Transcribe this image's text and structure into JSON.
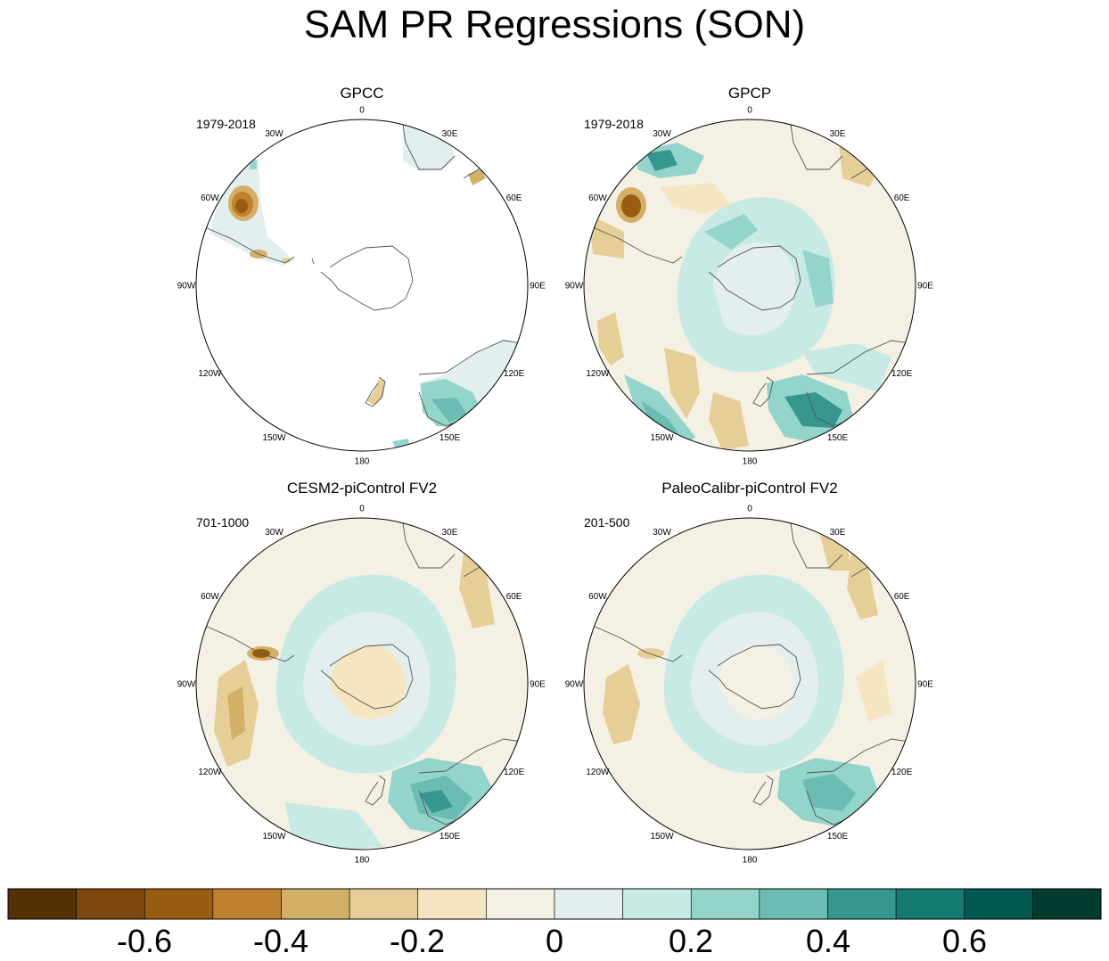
{
  "title": "SAM PR Regressions (SON)",
  "longitude_labels": [
    "0",
    "30E",
    "60E",
    "90E",
    "120E",
    "150E",
    "180",
    "150W",
    "120W",
    "90W",
    "60W",
    "30W"
  ],
  "panels": [
    {
      "title": "GPCC",
      "period": "1979-2018"
    },
    {
      "title": "GPCP",
      "period": "1979-2018"
    },
    {
      "title": "CESM2-piControl FV2",
      "period": "701-1000"
    },
    {
      "title": "PaleoCalibr-piControl FV2",
      "period": "201-500"
    }
  ],
  "colorbar": {
    "colors": [
      "#543005",
      "#7f470e",
      "#995d12",
      "#bf812d",
      "#d4af66",
      "#e6cf97",
      "#f5e6c1",
      "#f4f0e4",
      "#e2efee",
      "#c7eae5",
      "#93d4cb",
      "#6bbcb2",
      "#35978f",
      "#137a70",
      "#00584f",
      "#003c30"
    ],
    "tick_labels": [
      "-0.6",
      "-0.4",
      "-0.2",
      "0",
      "0.2",
      "0.4",
      "0.6"
    ]
  },
  "chart_data": [
    {
      "type": "heatmap",
      "projection": "south-polar-stereographic",
      "title": "GPCC",
      "subtitle": "1979-2018",
      "variable": "precipitation regression on SAM",
      "levels": [
        -0.7,
        -0.6,
        -0.5,
        -0.4,
        -0.3,
        -0.2,
        -0.1,
        0,
        0.1,
        0.2,
        0.3,
        0.4,
        0.5,
        0.6,
        0.7
      ],
      "features": [
        {
          "region": "southern South America (Argentina)",
          "value": -0.6
        },
        {
          "region": "Patagonia south tip",
          "value": -0.3
        },
        {
          "region": "southeastern Australia",
          "value": 0.4
        },
        {
          "region": "Tasmania",
          "value": 0.3
        },
        {
          "region": "New Zealand",
          "value": -0.2
        },
        {
          "region": "southern Africa",
          "value": 0.1
        }
      ]
    },
    {
      "type": "heatmap",
      "projection": "south-polar-stereographic",
      "title": "GPCP",
      "subtitle": "1979-2018",
      "variable": "precipitation regression on SAM",
      "features": [
        {
          "region": "South Atlantic near 30W",
          "value": 0.6
        },
        {
          "region": "southern South America",
          "value": -0.6
        },
        {
          "region": "Southern Ocean ring ~60S",
          "value": 0.2
        },
        {
          "region": "southeastern Australia",
          "value": 0.5
        },
        {
          "region": "South Pacific 150W",
          "value": 0.3
        },
        {
          "region": "mid-latitude South Pacific",
          "value": -0.3
        }
      ]
    },
    {
      "type": "heatmap",
      "projection": "south-polar-stereographic",
      "title": "CESM2-piControl FV2",
      "subtitle": "701-1000",
      "variable": "precipitation regression on SAM",
      "features": [
        {
          "region": "Chilean coast ~45S",
          "value": -0.5
        },
        {
          "region": "Southern Ocean ring ~60S",
          "value": 0.2
        },
        {
          "region": "southeastern Australia / Tasman Sea",
          "value": 0.5
        },
        {
          "region": "South Pacific 100W mid-latitudes",
          "value": -0.3
        },
        {
          "region": "Indian Ocean mid-latitudes",
          "value": -0.1
        }
      ]
    },
    {
      "type": "heatmap",
      "projection": "south-polar-stereographic",
      "title": "PaleoCalibr-piControl FV2",
      "subtitle": "201-500",
      "variable": "precipitation regression on SAM",
      "features": [
        {
          "region": "Chilean coast ~45S",
          "value": -0.3
        },
        {
          "region": "Southern Ocean ring ~60S",
          "value": 0.2
        },
        {
          "region": "southeastern Australia",
          "value": 0.4
        },
        {
          "region": "South Pacific 100W mid-latitudes",
          "value": -0.3
        },
        {
          "region": "South Atlantic subtropics",
          "value": -0.1
        }
      ]
    }
  ]
}
